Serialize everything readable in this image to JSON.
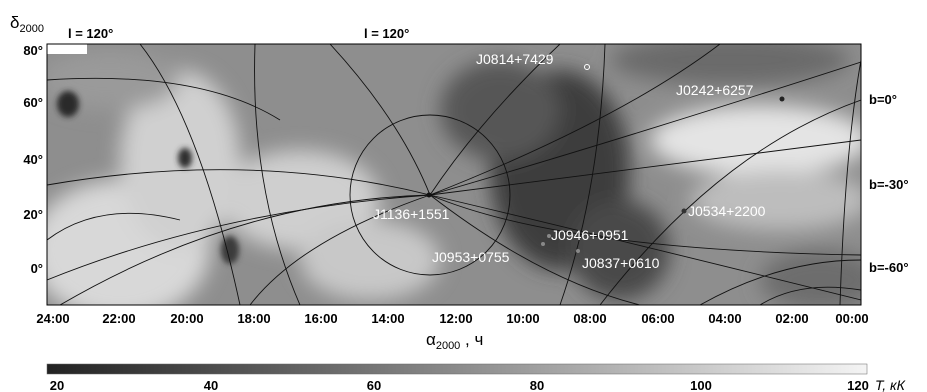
{
  "chart_data": {
    "type": "heatmap",
    "ylabel": "δ2000",
    "xlabel": "α2000 , ч",
    "x_ticks": [
      "24:00",
      "22:00",
      "20:00",
      "18:00",
      "16:00",
      "14:00",
      "12:00",
      "10:00",
      "08:00",
      "06:00",
      "04:00",
      "02:00",
      "00:00"
    ],
    "x_range_hours": [
      24,
      0
    ],
    "y_ticks": [
      "80°",
      "60°",
      "40°",
      "20°",
      "0°"
    ],
    "y_range_deg": [
      -12,
      85
    ],
    "galactic_longitude_labels": [
      "l = 120°",
      "l = 120°"
    ],
    "galactic_latitude_labels": [
      "b=0°",
      "b=-30°",
      "b=-60°"
    ],
    "sources": [
      {
        "name": "J0814+7429",
        "ra_h": 8.23,
        "dec_deg": 74.5,
        "marker": "open-circle"
      },
      {
        "name": "J0242+6257",
        "ra_h": 2.7,
        "dec_deg": 62.9,
        "marker": "dot"
      },
      {
        "name": "J1136+1551",
        "ra_h": 11.6,
        "dec_deg": 15.9,
        "marker": "dot"
      },
      {
        "name": "J0534+2200",
        "ra_h": 5.57,
        "dec_deg": 22.0,
        "marker": "dot"
      },
      {
        "name": "J0946+0951",
        "ra_h": 9.77,
        "dec_deg": 9.85,
        "marker": "dot"
      },
      {
        "name": "J0953+0755",
        "ra_h": 9.88,
        "dec_deg": 7.9,
        "marker": "dot"
      },
      {
        "name": "J0837+0610",
        "ra_h": 8.62,
        "dec_deg": 6.2,
        "marker": "dot"
      }
    ],
    "colorbar": {
      "label": "T, кК",
      "ticks": [
        "20",
        "40",
        "60",
        "80",
        "100",
        "120"
      ],
      "range": [
        20,
        120
      ],
      "colormap": "grayscale-dark-to-light"
    },
    "colors": {
      "low": "#222222",
      "high": "#ffffff"
    }
  }
}
